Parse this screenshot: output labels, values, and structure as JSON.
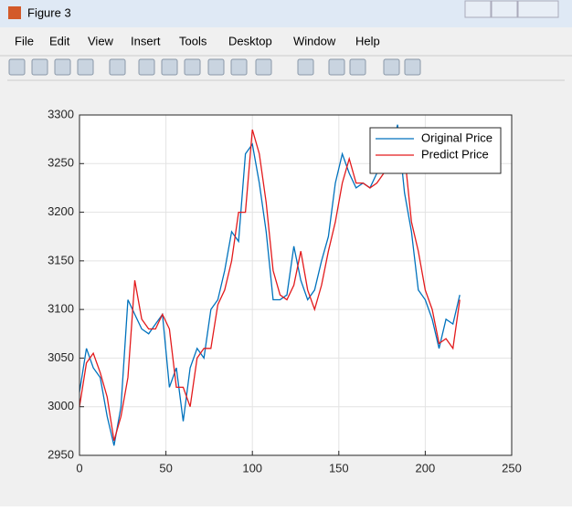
{
  "window": {
    "title": "Figure 3"
  },
  "menu": [
    "File",
    "Edit",
    "View",
    "Insert",
    "Tools",
    "Desktop",
    "Window",
    "Help"
  ],
  "chart_data": {
    "type": "line",
    "x": [
      0,
      4,
      8,
      12,
      16,
      20,
      24,
      28,
      32,
      36,
      40,
      44,
      48,
      52,
      56,
      60,
      64,
      68,
      72,
      76,
      80,
      84,
      88,
      92,
      96,
      100,
      104,
      108,
      112,
      116,
      120,
      124,
      128,
      132,
      136,
      140,
      144,
      148,
      152,
      156,
      160,
      164,
      168,
      172,
      176,
      180,
      184,
      188,
      192,
      196,
      200,
      204,
      208,
      212,
      216,
      220
    ],
    "series": [
      {
        "name": "Original Price",
        "color": "#0072bd",
        "values": [
          3015,
          3060,
          3040,
          3030,
          2990,
          2960,
          3000,
          3110,
          3095,
          3080,
          3075,
          3085,
          3095,
          3020,
          3040,
          2985,
          3040,
          3060,
          3050,
          3100,
          3110,
          3140,
          3180,
          3170,
          3260,
          3270,
          3230,
          3180,
          3110,
          3110,
          3115,
          3165,
          3130,
          3110,
          3120,
          3150,
          3175,
          3230,
          3260,
          3240,
          3225,
          3230,
          3225,
          3240,
          3250,
          3260,
          3290,
          3220,
          3180,
          3120,
          3110,
          3090,
          3060,
          3090,
          3085,
          3115
        ]
      },
      {
        "name": "Predict Price",
        "color": "#e31a1c",
        "values": [
          3000,
          3045,
          3055,
          3035,
          3010,
          2965,
          2990,
          3030,
          3130,
          3090,
          3080,
          3080,
          3095,
          3080,
          3020,
          3020,
          3000,
          3050,
          3060,
          3060,
          3105,
          3120,
          3150,
          3200,
          3200,
          3285,
          3260,
          3210,
          3140,
          3115,
          3110,
          3125,
          3160,
          3120,
          3100,
          3125,
          3160,
          3190,
          3230,
          3255,
          3230,
          3230,
          3225,
          3230,
          3240,
          3250,
          3270,
          3260,
          3190,
          3160,
          3120,
          3100,
          3065,
          3070,
          3060,
          3110
        ]
      }
    ],
    "xlim": [
      0,
      250
    ],
    "xticks": [
      0,
      50,
      100,
      150,
      200,
      250
    ],
    "ylim": [
      2950,
      3300
    ],
    "yticks": [
      2950,
      3000,
      3050,
      3100,
      3150,
      3200,
      3250,
      3300
    ],
    "grid": true,
    "legend": "northeast"
  }
}
